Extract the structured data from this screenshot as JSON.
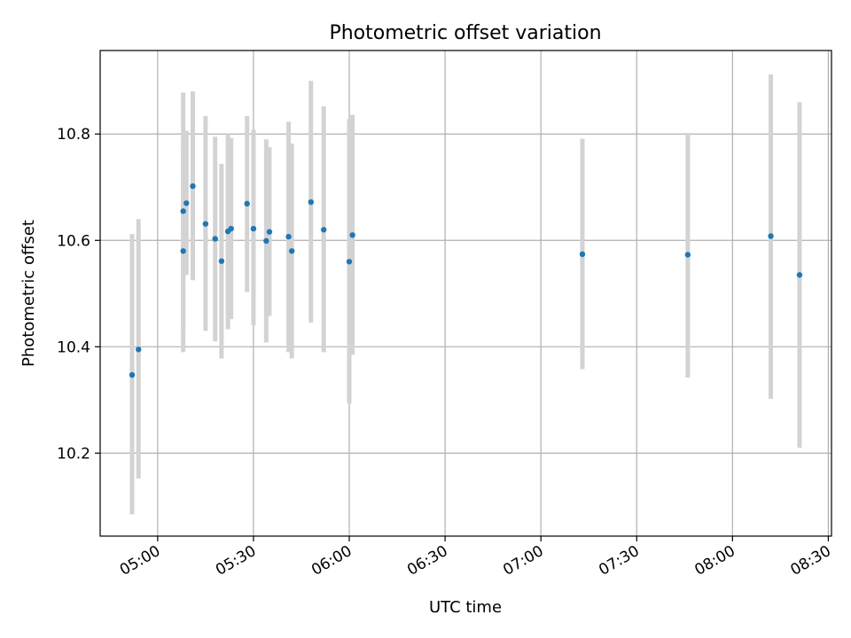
{
  "chart_data": {
    "type": "scatter",
    "title": "Photometric offset variation",
    "xlabel": "UTC time",
    "ylabel": "Photometric offset",
    "x_tick_labels": [
      "05:00",
      "05:30",
      "06:00",
      "06:30",
      "07:00",
      "07:30",
      "08:00",
      "08:30"
    ],
    "y_tick_labels": [
      "10.2",
      "10.4",
      "10.6",
      "10.8"
    ],
    "x_ticks": [
      "05:00",
      "05:30",
      "06:00",
      "06:30",
      "07:00",
      "07:30",
      "08:00",
      "08:30"
    ],
    "y_ticks": [
      10.2,
      10.4,
      10.6,
      10.8
    ],
    "xlim": [
      "04:42",
      "08:31"
    ],
    "ylim": [
      10.044,
      10.957
    ],
    "grid": true,
    "point_color": "#1f77b4",
    "errorbar_color": "#d3d3d3",
    "points": [
      {
        "t": "04:52",
        "y": 10.347,
        "lo": 10.085,
        "hi": 10.612
      },
      {
        "t": "04:54",
        "y": 10.395,
        "lo": 10.152,
        "hi": 10.64
      },
      {
        "t": "05:08",
        "y": 10.58,
        "lo": 10.39,
        "hi": 10.772
      },
      {
        "t": "05:08",
        "y": 10.655,
        "lo": 10.432,
        "hi": 10.878
      },
      {
        "t": "05:09",
        "y": 10.67,
        "lo": 10.535,
        "hi": 10.806
      },
      {
        "t": "05:11",
        "y": 10.702,
        "lo": 10.525,
        "hi": 10.88
      },
      {
        "t": "05:15",
        "y": 10.631,
        "lo": 10.43,
        "hi": 10.834
      },
      {
        "t": "05:18",
        "y": 10.603,
        "lo": 10.41,
        "hi": 10.795
      },
      {
        "t": "05:20",
        "y": 10.561,
        "lo": 10.378,
        "hi": 10.744
      },
      {
        "t": "05:22",
        "y": 10.617,
        "lo": 10.433,
        "hi": 10.8
      },
      {
        "t": "05:23",
        "y": 10.622,
        "lo": 10.452,
        "hi": 10.792
      },
      {
        "t": "05:28",
        "y": 10.669,
        "lo": 10.503,
        "hi": 10.834
      },
      {
        "t": "05:30",
        "y": 10.622,
        "lo": 10.44,
        "hi": 10.808
      },
      {
        "t": "05:34",
        "y": 10.599,
        "lo": 10.408,
        "hi": 10.79
      },
      {
        "t": "05:35",
        "y": 10.616,
        "lo": 10.458,
        "hi": 10.775
      },
      {
        "t": "05:41",
        "y": 10.607,
        "lo": 10.39,
        "hi": 10.823
      },
      {
        "t": "05:42",
        "y": 10.58,
        "lo": 10.378,
        "hi": 10.782
      },
      {
        "t": "05:48",
        "y": 10.672,
        "lo": 10.445,
        "hi": 10.9
      },
      {
        "t": "05:52",
        "y": 10.62,
        "lo": 10.39,
        "hi": 10.852
      },
      {
        "t": "06:00",
        "y": 10.56,
        "lo": 10.293,
        "hi": 10.828
      },
      {
        "t": "06:01",
        "y": 10.61,
        "lo": 10.385,
        "hi": 10.836
      },
      {
        "t": "07:13",
        "y": 10.574,
        "lo": 10.358,
        "hi": 10.791
      },
      {
        "t": "07:46",
        "y": 10.573,
        "lo": 10.342,
        "hi": 10.802
      },
      {
        "t": "08:12",
        "y": 10.608,
        "lo": 10.302,
        "hi": 10.912
      },
      {
        "t": "08:21",
        "y": 10.535,
        "lo": 10.21,
        "hi": 10.86
      }
    ]
  }
}
